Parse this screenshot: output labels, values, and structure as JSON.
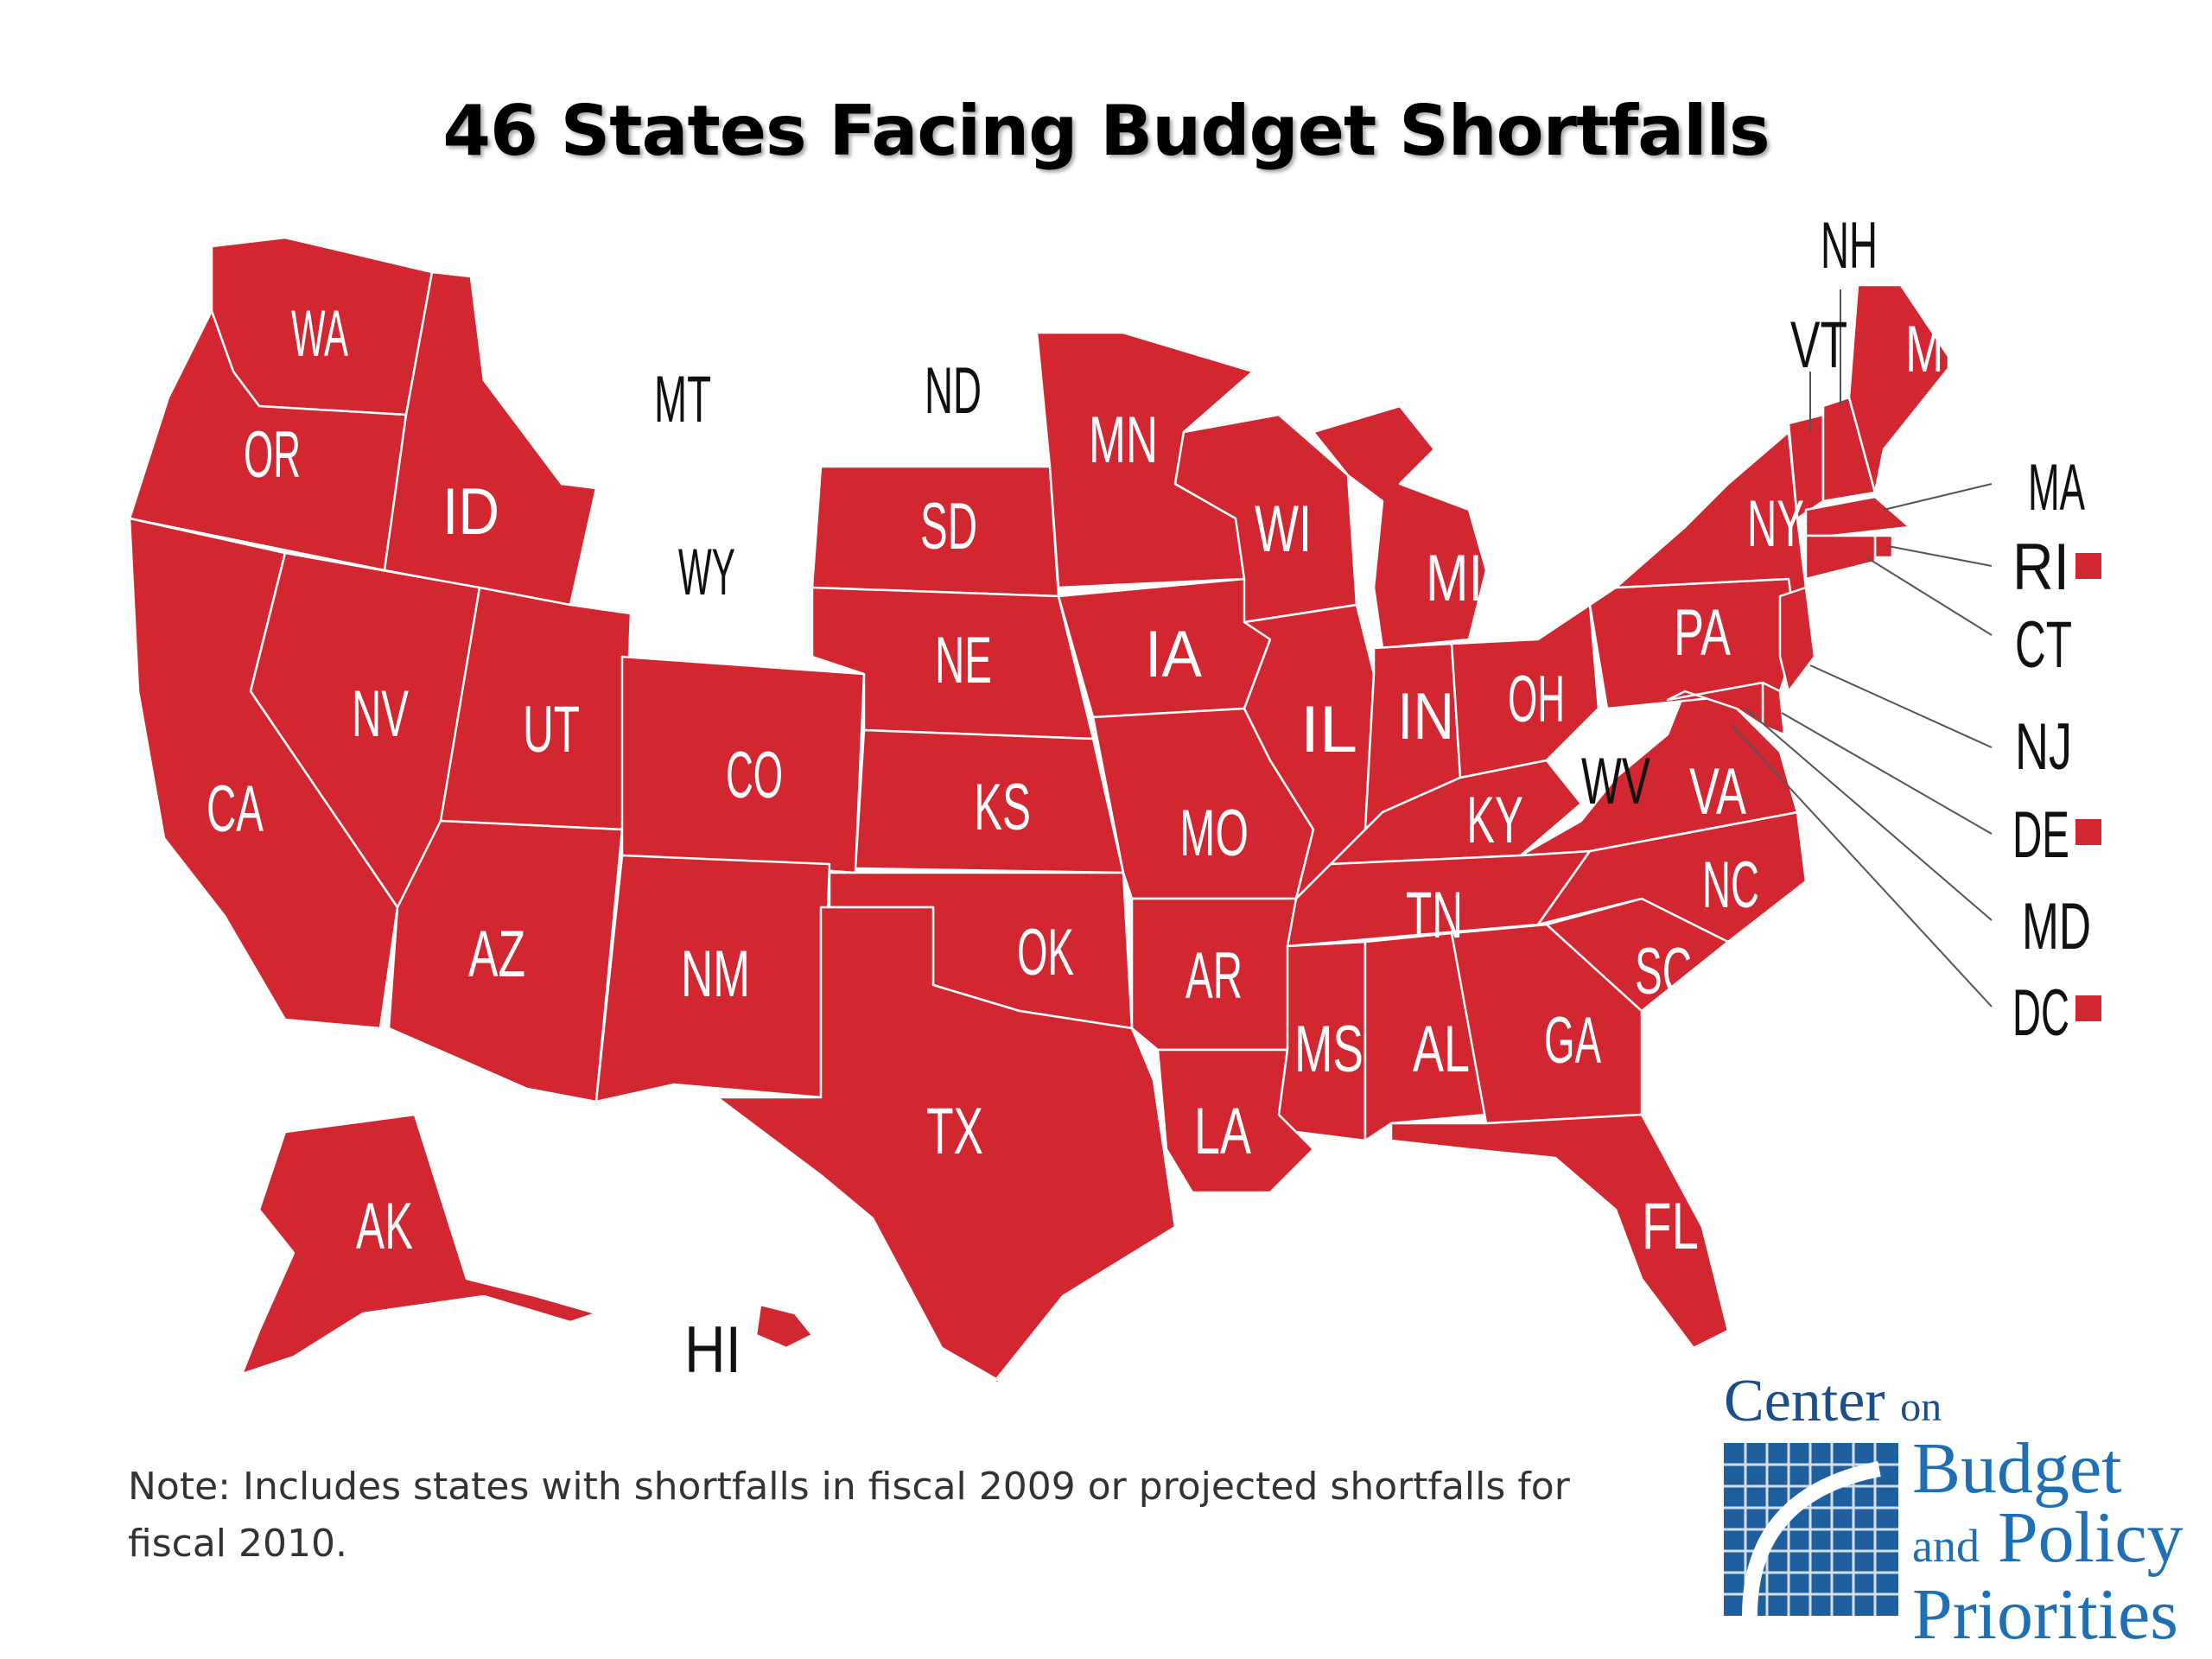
{
  "title": "46 States Facing Budget Shortfalls",
  "note": "Note: Includes states with shortfalls in fiscal 2009 or projected shortfalls for fiscal 2010.",
  "logo": {
    "line1_main": "Center",
    "line1_small": "on",
    "line2": "Budget",
    "line3_small": "and",
    "line3_main": "Policy",
    "line4": "Priorities"
  },
  "colors": {
    "shortfall": "#d22630",
    "no_shortfall": "#ffffff",
    "logo_blue": "#1f6fb5"
  },
  "states": [
    {
      "code": "WA",
      "shortfall": true
    },
    {
      "code": "OR",
      "shortfall": true
    },
    {
      "code": "CA",
      "shortfall": true
    },
    {
      "code": "ID",
      "shortfall": true
    },
    {
      "code": "NV",
      "shortfall": true
    },
    {
      "code": "MT",
      "shortfall": false
    },
    {
      "code": "WY",
      "shortfall": false
    },
    {
      "code": "UT",
      "shortfall": true
    },
    {
      "code": "AZ",
      "shortfall": true
    },
    {
      "code": "CO",
      "shortfall": true
    },
    {
      "code": "NM",
      "shortfall": true
    },
    {
      "code": "ND",
      "shortfall": false
    },
    {
      "code": "SD",
      "shortfall": true
    },
    {
      "code": "NE",
      "shortfall": true
    },
    {
      "code": "KS",
      "shortfall": true
    },
    {
      "code": "OK",
      "shortfall": true
    },
    {
      "code": "TX",
      "shortfall": true
    },
    {
      "code": "MN",
      "shortfall": true
    },
    {
      "code": "IA",
      "shortfall": true
    },
    {
      "code": "MO",
      "shortfall": true
    },
    {
      "code": "AR",
      "shortfall": true
    },
    {
      "code": "LA",
      "shortfall": true
    },
    {
      "code": "WI",
      "shortfall": true
    },
    {
      "code": "IL",
      "shortfall": true
    },
    {
      "code": "MI",
      "shortfall": true
    },
    {
      "code": "IN",
      "shortfall": true
    },
    {
      "code": "OH",
      "shortfall": true
    },
    {
      "code": "KY",
      "shortfall": true
    },
    {
      "code": "TN",
      "shortfall": true
    },
    {
      "code": "MS",
      "shortfall": true
    },
    {
      "code": "AL",
      "shortfall": true
    },
    {
      "code": "GA",
      "shortfall": true
    },
    {
      "code": "FL",
      "shortfall": true
    },
    {
      "code": "SC",
      "shortfall": true
    },
    {
      "code": "NC",
      "shortfall": true
    },
    {
      "code": "VA",
      "shortfall": true
    },
    {
      "code": "WV",
      "shortfall": false
    },
    {
      "code": "PA",
      "shortfall": true
    },
    {
      "code": "NY",
      "shortfall": true
    },
    {
      "code": "VT",
      "shortfall": true
    },
    {
      "code": "NH",
      "shortfall": true
    },
    {
      "code": "ME",
      "shortfall": true
    },
    {
      "code": "MA",
      "shortfall": true
    },
    {
      "code": "RI",
      "shortfall": true
    },
    {
      "code": "CT",
      "shortfall": true
    },
    {
      "code": "NJ",
      "shortfall": true
    },
    {
      "code": "DE",
      "shortfall": true
    },
    {
      "code": "MD",
      "shortfall": true
    },
    {
      "code": "DC",
      "shortfall": true
    },
    {
      "code": "AK",
      "shortfall": true
    },
    {
      "code": "HI",
      "shortfall": true
    }
  ]
}
